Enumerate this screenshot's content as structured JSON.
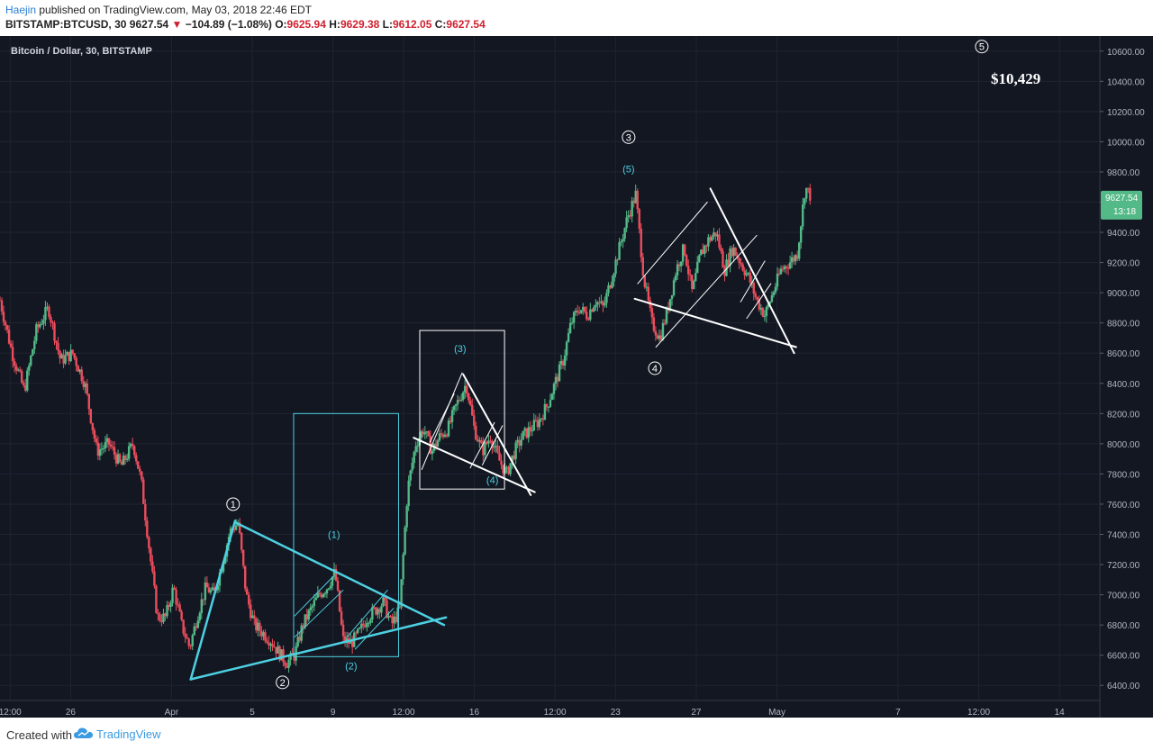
{
  "header": {
    "author": "Haejin",
    "published_text": " published on TradingView.com, May 03, 2018 22:46 EDT",
    "symbol": "BITSTAMP:BTCUSD, 30",
    "last": "9627.54",
    "change": "−104.89 (−1.08%)",
    "o_label": "O:",
    "o_value": "9625.94",
    "h_label": "H:",
    "h_value": "9629.38",
    "l_label": "L:",
    "l_value": "9612.05",
    "c_label": "C:",
    "c_value": "9627.54"
  },
  "footer": {
    "created": "Created with",
    "brand": "TradingView"
  },
  "colors": {
    "background": "#131722",
    "up": "#53b987",
    "down": "#eb4d5c",
    "cyan": "#4dd0e1",
    "white": "#ffffff",
    "axis_text": "#b2b5be"
  },
  "chart_data": {
    "type": "candlestick",
    "title": "Bitcoin / Dollar, 30, BITSTAMP",
    "ylim": [
      6300,
      10700
    ],
    "yticks": [
      6400,
      6600,
      6800,
      7000,
      7200,
      7400,
      7600,
      7800,
      8000,
      8200,
      8400,
      8600,
      8800,
      9000,
      9200,
      9400,
      9600,
      9800,
      10000,
      10200,
      10400,
      10600
    ],
    "ytick_labels": [
      "6400.00",
      "6600.00",
      "6800.00",
      "7000.00",
      "7200.00",
      "7400.00",
      "7600.00",
      "7800.00",
      "8000.00",
      "8200.00",
      "8400.00",
      "8600.00",
      "8800.00",
      "9000.00",
      "9200.00",
      "9400.00",
      "9600.00",
      "9800.00",
      "10000.00",
      "10200.00",
      "10400.00",
      "10600.00"
    ],
    "xticks": [
      {
        "label": "12:00",
        "x": 0.5
      },
      {
        "label": "26",
        "x": 3.5
      },
      {
        "label": "Apr",
        "x": 8.5
      },
      {
        "label": "5",
        "x": 12.5
      },
      {
        "label": "9",
        "x": 16.5
      },
      {
        "label": "12:00",
        "x": 20
      },
      {
        "label": "16",
        "x": 23.5
      },
      {
        "label": "12:00",
        "x": 27.5
      },
      {
        "label": "23",
        "x": 30.5
      },
      {
        "label": "27",
        "x": 34.5
      },
      {
        "label": "May",
        "x": 38.5
      },
      {
        "label": "7",
        "x": 44.5
      },
      {
        "label": "12:00",
        "x": 48.5
      },
      {
        "label": "14",
        "x": 52.5
      }
    ],
    "xrange": [
      0,
      54.5
    ],
    "grid": true,
    "price_path": [
      [
        0,
        8950
      ],
      [
        0.6,
        8600
      ],
      [
        1.2,
        8350
      ],
      [
        1.8,
        8750
      ],
      [
        2.4,
        8900
      ],
      [
        3,
        8550
      ],
      [
        3.6,
        8600
      ],
      [
        4.2,
        8400
      ],
      [
        4.8,
        7950
      ],
      [
        5.4,
        8000
      ],
      [
        6,
        7850
      ],
      [
        6.6,
        8000
      ],
      [
        7,
        7750
      ],
      [
        7.4,
        7300
      ],
      [
        7.8,
        6850
      ],
      [
        8.2,
        6850
      ],
      [
        8.6,
        7050
      ],
      [
        9,
        6800
      ],
      [
        9.4,
        6650
      ],
      [
        9.8,
        6870
      ],
      [
        10.2,
        7050
      ],
      [
        10.6,
        7000
      ],
      [
        11,
        7200
      ],
      [
        11.4,
        7420
      ],
      [
        11.8,
        7480
      ],
      [
        12.2,
        7000
      ],
      [
        12.6,
        6800
      ],
      [
        13,
        6750
      ],
      [
        13.4,
        6700
      ],
      [
        13.8,
        6620
      ],
      [
        14.2,
        6550
      ],
      [
        14.6,
        6600
      ],
      [
        15,
        6800
      ],
      [
        15.4,
        6900
      ],
      [
        15.8,
        7000
      ],
      [
        16.2,
        7050
      ],
      [
        16.6,
        7150
      ],
      [
        17,
        6700
      ],
      [
        17.4,
        6680
      ],
      [
        17.8,
        6750
      ],
      [
        18.2,
        6850
      ],
      [
        18.6,
        6900
      ],
      [
        19,
        6950
      ],
      [
        19.4,
        6800
      ],
      [
        19.8,
        6900
      ],
      [
        20.2,
        7700
      ],
      [
        20.6,
        8000
      ],
      [
        21,
        8100
      ],
      [
        21.4,
        7950
      ],
      [
        21.8,
        8050
      ],
      [
        22.2,
        8100
      ],
      [
        22.6,
        8250
      ],
      [
        23.1,
        8400
      ],
      [
        23.5,
        8100
      ],
      [
        23.9,
        7950
      ],
      [
        24.3,
        8050
      ],
      [
        24.7,
        7900
      ],
      [
        25.1,
        7800
      ],
      [
        25.5,
        7950
      ],
      [
        25.9,
        8050
      ],
      [
        26.3,
        8100
      ],
      [
        26.7,
        8150
      ],
      [
        27.1,
        8250
      ],
      [
        27.5,
        8400
      ],
      [
        27.9,
        8550
      ],
      [
        28.3,
        8800
      ],
      [
        28.7,
        8900
      ],
      [
        29.1,
        8850
      ],
      [
        29.5,
        8950
      ],
      [
        29.9,
        8900
      ],
      [
        30.3,
        9100
      ],
      [
        30.7,
        9300
      ],
      [
        31.1,
        9500
      ],
      [
        31.5,
        9650
      ],
      [
        31.9,
        9100
      ],
      [
        32.3,
        8800
      ],
      [
        32.7,
        8700
      ],
      [
        33.1,
        8900
      ],
      [
        33.5,
        9150
      ],
      [
        33.9,
        9300
      ],
      [
        34.3,
        9000
      ],
      [
        34.7,
        9250
      ],
      [
        35.1,
        9350
      ],
      [
        35.5,
        9400
      ],
      [
        35.9,
        9150
      ],
      [
        36.3,
        9300
      ],
      [
        36.7,
        9200
      ],
      [
        37.1,
        9100
      ],
      [
        37.5,
        8950
      ],
      [
        37.9,
        8850
      ],
      [
        38.3,
        9000
      ],
      [
        38.7,
        9150
      ],
      [
        39.1,
        9200
      ],
      [
        39.5,
        9250
      ],
      [
        39.9,
        9700
      ],
      [
        40.2,
        9630
      ]
    ],
    "last_price_label": "9627.54",
    "countdown_label": "13:18",
    "target_label": "$10,429",
    "wave_labels": [
      {
        "text": "1",
        "circled": true,
        "x": 11.55,
        "y": 7600,
        "color": "white"
      },
      {
        "text": "2",
        "circled": true,
        "x": 14.0,
        "y": 6420,
        "color": "white"
      },
      {
        "text": "3",
        "circled": true,
        "x": 31.15,
        "y": 10030,
        "color": "white"
      },
      {
        "text": "4",
        "circled": true,
        "x": 32.45,
        "y": 8500,
        "color": "white"
      },
      {
        "text": "5",
        "circled": true,
        "x": 48.65,
        "y": 10630,
        "color": "white"
      },
      {
        "text": "(1)",
        "circled": false,
        "x": 16.55,
        "y": 7400,
        "color": "cyan"
      },
      {
        "text": "(2)",
        "circled": false,
        "x": 17.4,
        "y": 6530,
        "color": "cyan"
      },
      {
        "text": "(3)",
        "circled": false,
        "x": 22.8,
        "y": 8630,
        "color": "cyan"
      },
      {
        "text": "(4)",
        "circled": false,
        "x": 24.4,
        "y": 7760,
        "color": "cyan"
      },
      {
        "text": "(5)",
        "circled": false,
        "x": 31.15,
        "y": 9820,
        "color": "cyan"
      }
    ],
    "annotations": {
      "rectangles": [
        {
          "x1": 14.55,
          "x2": 19.75,
          "y1": 6590,
          "y2": 8200,
          "color": "cyan"
        },
        {
          "x1": 20.8,
          "x2": 25.0,
          "y1": 7700,
          "y2": 8750,
          "color": "white"
        }
      ],
      "lines": [
        {
          "x1": 9.45,
          "y1": 6440,
          "x2": 11.65,
          "y2": 7490,
          "color": "cyan",
          "width": 2.5
        },
        {
          "x1": 11.65,
          "y1": 7480,
          "x2": 22.0,
          "y2": 6800,
          "color": "cyan",
          "width": 2.5
        },
        {
          "x1": 9.45,
          "y1": 6440,
          "x2": 22.1,
          "y2": 6850,
          "color": "cyan",
          "width": 2.5
        },
        {
          "x1": 14.6,
          "y1": 6860,
          "x2": 16.5,
          "y2": 7120,
          "color": "cyan",
          "width": 1
        },
        {
          "x1": 14.6,
          "y1": 6720,
          "x2": 17.0,
          "y2": 7030,
          "color": "cyan",
          "width": 1
        },
        {
          "x1": 17.2,
          "y1": 6720,
          "x2": 19.2,
          "y2": 7030,
          "color": "cyan",
          "width": 1
        },
        {
          "x1": 17.6,
          "y1": 6640,
          "x2": 19.5,
          "y2": 6910,
          "color": "cyan",
          "width": 1
        },
        {
          "x1": 20.5,
          "y1": 8040,
          "x2": 26.5,
          "y2": 7680,
          "color": "white",
          "width": 2
        },
        {
          "x1": 22.95,
          "y1": 8460,
          "x2": 26.3,
          "y2": 7660,
          "color": "white",
          "width": 2
        },
        {
          "x1": 20.9,
          "y1": 7830,
          "x2": 22.9,
          "y2": 8470,
          "color": "white",
          "width": 1
        },
        {
          "x1": 21.3,
          "y1": 8010,
          "x2": 22.5,
          "y2": 8330,
          "color": "white",
          "width": 1
        },
        {
          "x1": 23.3,
          "y1": 7840,
          "x2": 24.5,
          "y2": 8140,
          "color": "white",
          "width": 1
        },
        {
          "x1": 23.9,
          "y1": 7860,
          "x2": 24.9,
          "y2": 8120,
          "color": "white",
          "width": 1
        },
        {
          "x1": 31.45,
          "y1": 8960,
          "x2": 39.45,
          "y2": 8640,
          "color": "white",
          "width": 2
        },
        {
          "x1": 35.2,
          "y1": 9690,
          "x2": 39.35,
          "y2": 8600,
          "color": "white",
          "width": 2
        },
        {
          "x1": 31.6,
          "y1": 9060,
          "x2": 35.05,
          "y2": 9600,
          "color": "white",
          "width": 1
        },
        {
          "x1": 32.5,
          "y1": 8640,
          "x2": 37.5,
          "y2": 9380,
          "color": "white",
          "width": 1
        },
        {
          "x1": 36.7,
          "y1": 8940,
          "x2": 37.9,
          "y2": 9210,
          "color": "white",
          "width": 1
        },
        {
          "x1": 37.0,
          "y1": 8830,
          "x2": 38.2,
          "y2": 9060,
          "color": "white",
          "width": 1
        }
      ]
    }
  }
}
